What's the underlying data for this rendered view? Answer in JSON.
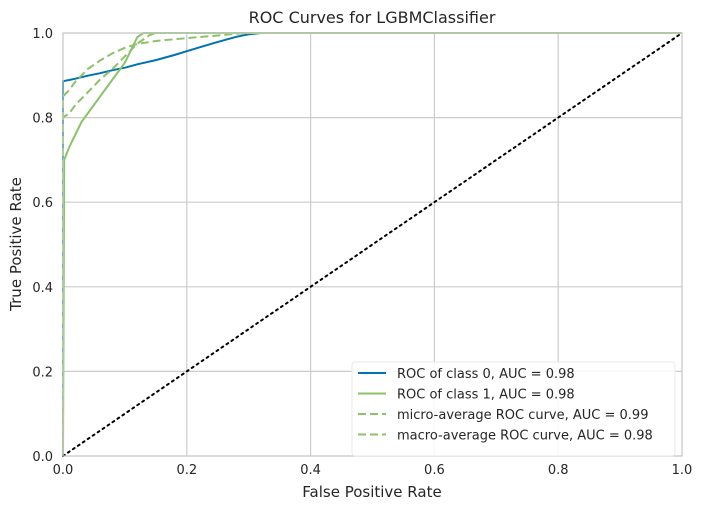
{
  "chart_data": {
    "type": "line",
    "title": "ROC Curves for LGBMClassifier",
    "xlabel": "False Positive Rate",
    "ylabel": "True Positive Rate",
    "xlim": [
      0.0,
      1.0
    ],
    "ylim": [
      0.0,
      1.0
    ],
    "x_ticks": [
      "0.0",
      "0.2",
      "0.4",
      "0.6",
      "0.8",
      "1.0"
    ],
    "y_ticks": [
      "0.0",
      "0.2",
      "0.4",
      "0.6",
      "0.8",
      "1.0"
    ],
    "grid": true,
    "legend_position": "bottom-right",
    "series": [
      {
        "name": "ROC of class 0, AUC = 0.98",
        "color": "#0072b2",
        "style": "solid",
        "points": [
          [
            0,
            0
          ],
          [
            0,
            0.886
          ],
          [
            0.01,
            0.889
          ],
          [
            0.02,
            0.892
          ],
          [
            0.04,
            0.899
          ],
          [
            0.06,
            0.905
          ],
          [
            0.08,
            0.912
          ],
          [
            0.1,
            0.918
          ],
          [
            0.12,
            0.926
          ],
          [
            0.15,
            0.936
          ],
          [
            0.18,
            0.948
          ],
          [
            0.2,
            0.957
          ],
          [
            0.22,
            0.966
          ],
          [
            0.25,
            0.979
          ],
          [
            0.28,
            0.991
          ],
          [
            0.3,
            0.997
          ],
          [
            0.32,
            1.0
          ],
          [
            1.0,
            1.0
          ]
        ]
      },
      {
        "name": "ROC of class 1, AUC = 0.98",
        "color": "#8cc26a",
        "style": "solid",
        "points": [
          [
            0,
            0
          ],
          [
            0.002,
            0.7
          ],
          [
            0.01,
            0.73
          ],
          [
            0.02,
            0.76
          ],
          [
            0.03,
            0.79
          ],
          [
            0.04,
            0.81
          ],
          [
            0.05,
            0.83
          ],
          [
            0.06,
            0.85
          ],
          [
            0.07,
            0.87
          ],
          [
            0.08,
            0.89
          ],
          [
            0.09,
            0.91
          ],
          [
            0.1,
            0.93
          ],
          [
            0.11,
            0.96
          ],
          [
            0.12,
            0.99
          ],
          [
            0.13,
            1.0
          ],
          [
            1.0,
            1.0
          ]
        ]
      },
      {
        "name": "micro-average ROC curve, AUC = 0.99",
        "color": "#8cc26a",
        "style": "dashed",
        "points": [
          [
            0,
            0
          ],
          [
            0,
            0.85
          ],
          [
            0.01,
            0.865
          ],
          [
            0.02,
            0.885
          ],
          [
            0.04,
            0.915
          ],
          [
            0.06,
            0.935
          ],
          [
            0.08,
            0.952
          ],
          [
            0.1,
            0.965
          ],
          [
            0.12,
            0.974
          ],
          [
            0.15,
            0.981
          ],
          [
            0.2,
            0.988
          ],
          [
            0.25,
            0.994
          ],
          [
            0.28,
            0.998
          ],
          [
            0.3,
            1.0
          ],
          [
            1.0,
            1.0
          ]
        ]
      },
      {
        "name": "macro-average ROC curve, AUC = 0.98",
        "color": "#8cc26a",
        "style": "dashed",
        "points": [
          [
            0,
            0
          ],
          [
            0,
            0.8
          ],
          [
            0.01,
            0.81
          ],
          [
            0.02,
            0.83
          ],
          [
            0.03,
            0.845
          ],
          [
            0.04,
            0.86
          ],
          [
            0.05,
            0.875
          ],
          [
            0.06,
            0.89
          ],
          [
            0.08,
            0.915
          ],
          [
            0.1,
            0.945
          ],
          [
            0.12,
            0.975
          ],
          [
            0.14,
            0.995
          ],
          [
            0.15,
            1.0
          ],
          [
            1.0,
            1.0
          ]
        ]
      },
      {
        "name": "",
        "color": "#000000",
        "style": "dotted",
        "points": [
          [
            0,
            0
          ],
          [
            1,
            1
          ]
        ]
      }
    ]
  }
}
